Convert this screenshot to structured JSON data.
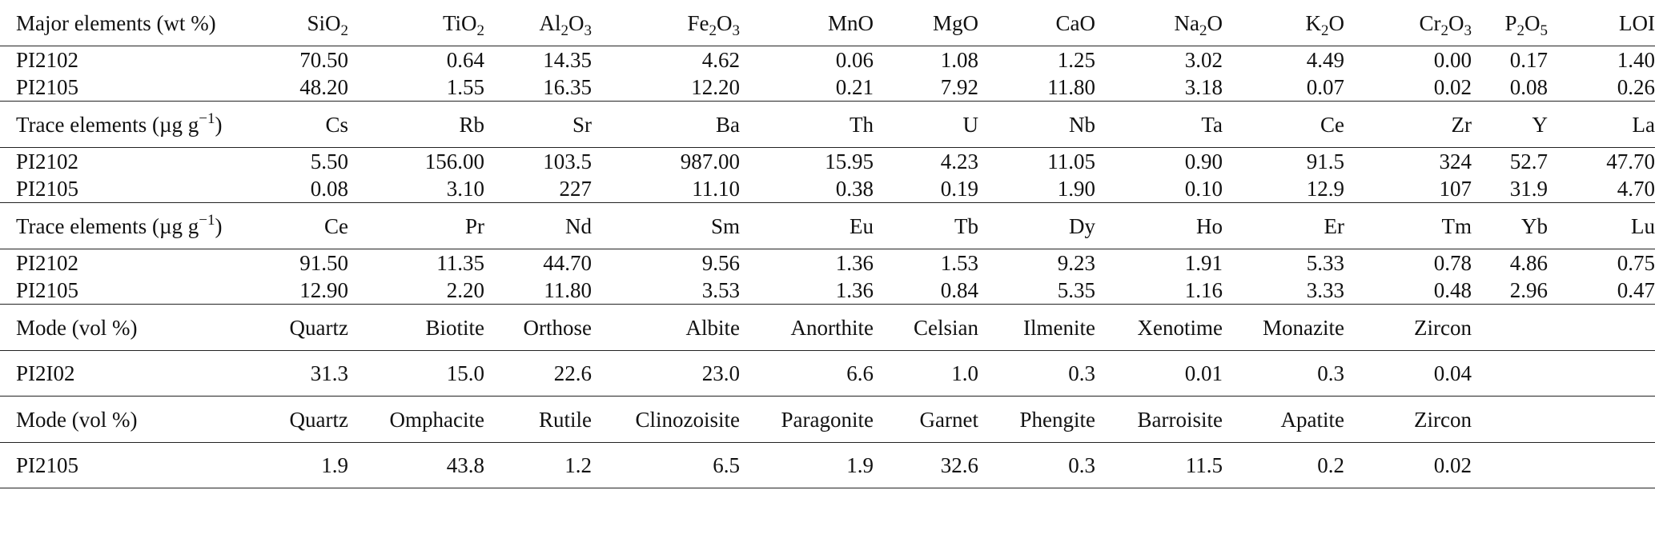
{
  "sections": [
    {
      "header": [
        {
          "t": "Major elements (wt %)"
        },
        {
          "t": "SiO",
          "sub": "2"
        },
        {
          "t": "TiO",
          "sub": "2"
        },
        {
          "t": "Al",
          "sub": "2",
          "t2": "O",
          "sub2": "3"
        },
        {
          "t": "Fe",
          "sub": "2",
          "t2": "O",
          "sub2": "3"
        },
        {
          "t": "MnO"
        },
        {
          "t": "MgO"
        },
        {
          "t": "CaO"
        },
        {
          "t": "Na",
          "sub": "2",
          "t2": "O"
        },
        {
          "t": "K",
          "sub": "2",
          "t2": "O"
        },
        {
          "t": "Cr",
          "sub": "2",
          "t2": "O",
          "sub2": "3"
        },
        {
          "t": "P",
          "sub": "2",
          "t2": "O",
          "sub2": "5"
        },
        {
          "t": "LOI"
        }
      ],
      "rows": [
        [
          "PI2102",
          "70.50",
          "0.64",
          "14.35",
          "4.62",
          "0.06",
          "1.08",
          "1.25",
          "3.02",
          "4.49",
          "0.00",
          "0.17",
          "1.40"
        ],
        [
          "PI2105",
          "48.20",
          "1.55",
          "16.35",
          "12.20",
          "0.21",
          "7.92",
          "11.80",
          "3.18",
          "0.07",
          "0.02",
          "0.08",
          "0.26"
        ]
      ]
    },
    {
      "header": [
        {
          "t": "Trace elements (µg g",
          "sup": "−1",
          "t2": ")"
        },
        {
          "t": "Cs"
        },
        {
          "t": "Rb"
        },
        {
          "t": "Sr"
        },
        {
          "t": "Ba"
        },
        {
          "t": "Th"
        },
        {
          "t": "U"
        },
        {
          "t": "Nb"
        },
        {
          "t": "Ta"
        },
        {
          "t": "Ce"
        },
        {
          "t": "Zr"
        },
        {
          "t": "Y"
        },
        {
          "t": "La"
        }
      ],
      "rows": [
        [
          "PI2102",
          "5.50",
          "156.00",
          "103.5",
          "987.00",
          "15.95",
          "4.23",
          "11.05",
          "0.90",
          "91.5",
          "324",
          "52.7",
          "47.70"
        ],
        [
          "PI2105",
          "0.08",
          "3.10",
          "227",
          "11.10",
          "0.38",
          "0.19",
          "1.90",
          "0.10",
          "12.9",
          "107",
          "31.9",
          "4.70"
        ]
      ]
    },
    {
      "header": [
        {
          "t": "Trace elements (µg g",
          "sup": "−1",
          "t2": ")"
        },
        {
          "t": "Ce"
        },
        {
          "t": "Pr"
        },
        {
          "t": "Nd"
        },
        {
          "t": "Sm"
        },
        {
          "t": "Eu"
        },
        {
          "t": "Tb"
        },
        {
          "t": "Dy"
        },
        {
          "t": "Ho"
        },
        {
          "t": "Er"
        },
        {
          "t": "Tm"
        },
        {
          "t": "Yb"
        },
        {
          "t": "Lu"
        }
      ],
      "rows": [
        [
          "PI2102",
          "91.50",
          "11.35",
          "44.70",
          "9.56",
          "1.36",
          "1.53",
          "9.23",
          "1.91",
          "5.33",
          "0.78",
          "4.86",
          "0.75"
        ],
        [
          "PI2105",
          "12.90",
          "2.20",
          "11.80",
          "3.53",
          "1.36",
          "0.84",
          "5.35",
          "1.16",
          "3.33",
          "0.48",
          "2.96",
          "0.47"
        ]
      ]
    },
    {
      "header": [
        {
          "t": "Mode (vol %)"
        },
        {
          "t": "Quartz"
        },
        {
          "t": "Biotite"
        },
        {
          "t": "Orthose"
        },
        {
          "t": "Albite"
        },
        {
          "t": "Anorthite"
        },
        {
          "t": "Celsian"
        },
        {
          "t": "Ilmenite"
        },
        {
          "t": "Xenotime"
        },
        {
          "t": "Monazite"
        },
        {
          "t": "Zircon"
        },
        {
          "t": ""
        },
        {
          "t": ""
        }
      ],
      "rows": [
        [
          "PI2I02",
          "31.3",
          "15.0",
          "22.6",
          "23.0",
          "6.6",
          "1.0",
          "0.3",
          "0.01",
          "0.3",
          "0.04",
          "",
          ""
        ]
      ]
    },
    {
      "header": [
        {
          "t": "Mode (vol %)"
        },
        {
          "t": "Quartz"
        },
        {
          "t": "Omphacite"
        },
        {
          "t": "Rutile"
        },
        {
          "t": "Clinozoisite"
        },
        {
          "t": "Paragonite"
        },
        {
          "t": "Garnet"
        },
        {
          "t": "Phengite"
        },
        {
          "t": "Barroisite"
        },
        {
          "t": "Apatite"
        },
        {
          "t": "Zircon"
        },
        {
          "t": ""
        },
        {
          "t": ""
        }
      ],
      "rows": [
        [
          "PI2105",
          "1.9",
          "43.8",
          "1.2",
          "6.5",
          "1.9",
          "32.6",
          "0.3",
          "11.5",
          "0.2",
          "0.02",
          "",
          ""
        ]
      ]
    }
  ]
}
